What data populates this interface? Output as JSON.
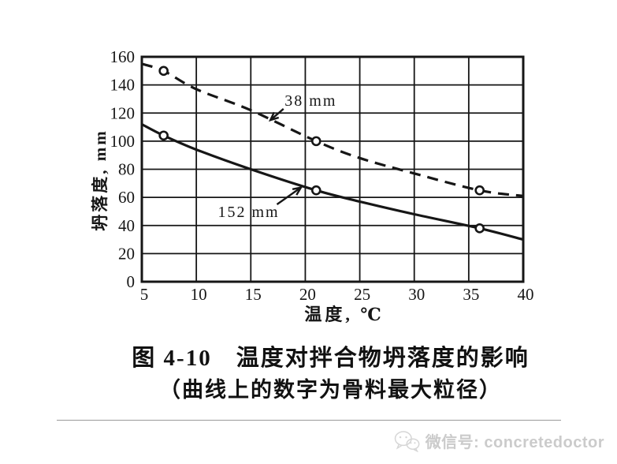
{
  "chart_data": {
    "type": "line",
    "title": "",
    "xlabel": "温度, ℃",
    "ylabel": "坍落度, mm",
    "xlim": [
      5,
      40
    ],
    "ylim": [
      0,
      160
    ],
    "xticks": [
      5,
      10,
      15,
      20,
      25,
      30,
      35,
      40
    ],
    "yticks": [
      0,
      20,
      40,
      60,
      80,
      100,
      120,
      140,
      160
    ],
    "grid": true,
    "legend_position": "none",
    "ink_color": "#161616",
    "series": [
      {
        "name": "38 mm",
        "style": "dashed",
        "x": [
          5,
          7,
          10,
          15,
          21,
          25,
          30,
          36,
          40
        ],
        "y": [
          155,
          150,
          137,
          122,
          100,
          88,
          77,
          65,
          61
        ],
        "markers": [
          [
            7,
            150
          ],
          [
            21,
            100
          ],
          [
            36,
            65
          ]
        ]
      },
      {
        "name": "152 mm",
        "style": "solid",
        "x": [
          5,
          7,
          10,
          15,
          21,
          25,
          30,
          36,
          40
        ],
        "y": [
          112,
          104,
          94,
          80,
          65,
          57,
          48,
          38,
          30
        ],
        "markers": [
          [
            7,
            104
          ],
          [
            21,
            65
          ],
          [
            36,
            38
          ]
        ]
      }
    ],
    "annotations": [
      {
        "text": "38 mm",
        "text_at": [
          20.5,
          129
        ],
        "arrow_from": [
          18.0,
          123
        ],
        "arrow_to": [
          16.8,
          115
        ]
      },
      {
        "text": "152 mm",
        "text_at": [
          14.8,
          50
        ],
        "arrow_from": [
          17.4,
          55
        ],
        "arrow_to": [
          19.6,
          67
        ]
      }
    ]
  },
  "caption": {
    "line1": "图 4-10　温度对拌合物坍落度的影响",
    "line2": "（曲线上的数字为骨料最大粒径）"
  },
  "footer": {
    "watermark_label": "微信号: concretedoctor",
    "watermark_color": "#cbcbcb"
  }
}
